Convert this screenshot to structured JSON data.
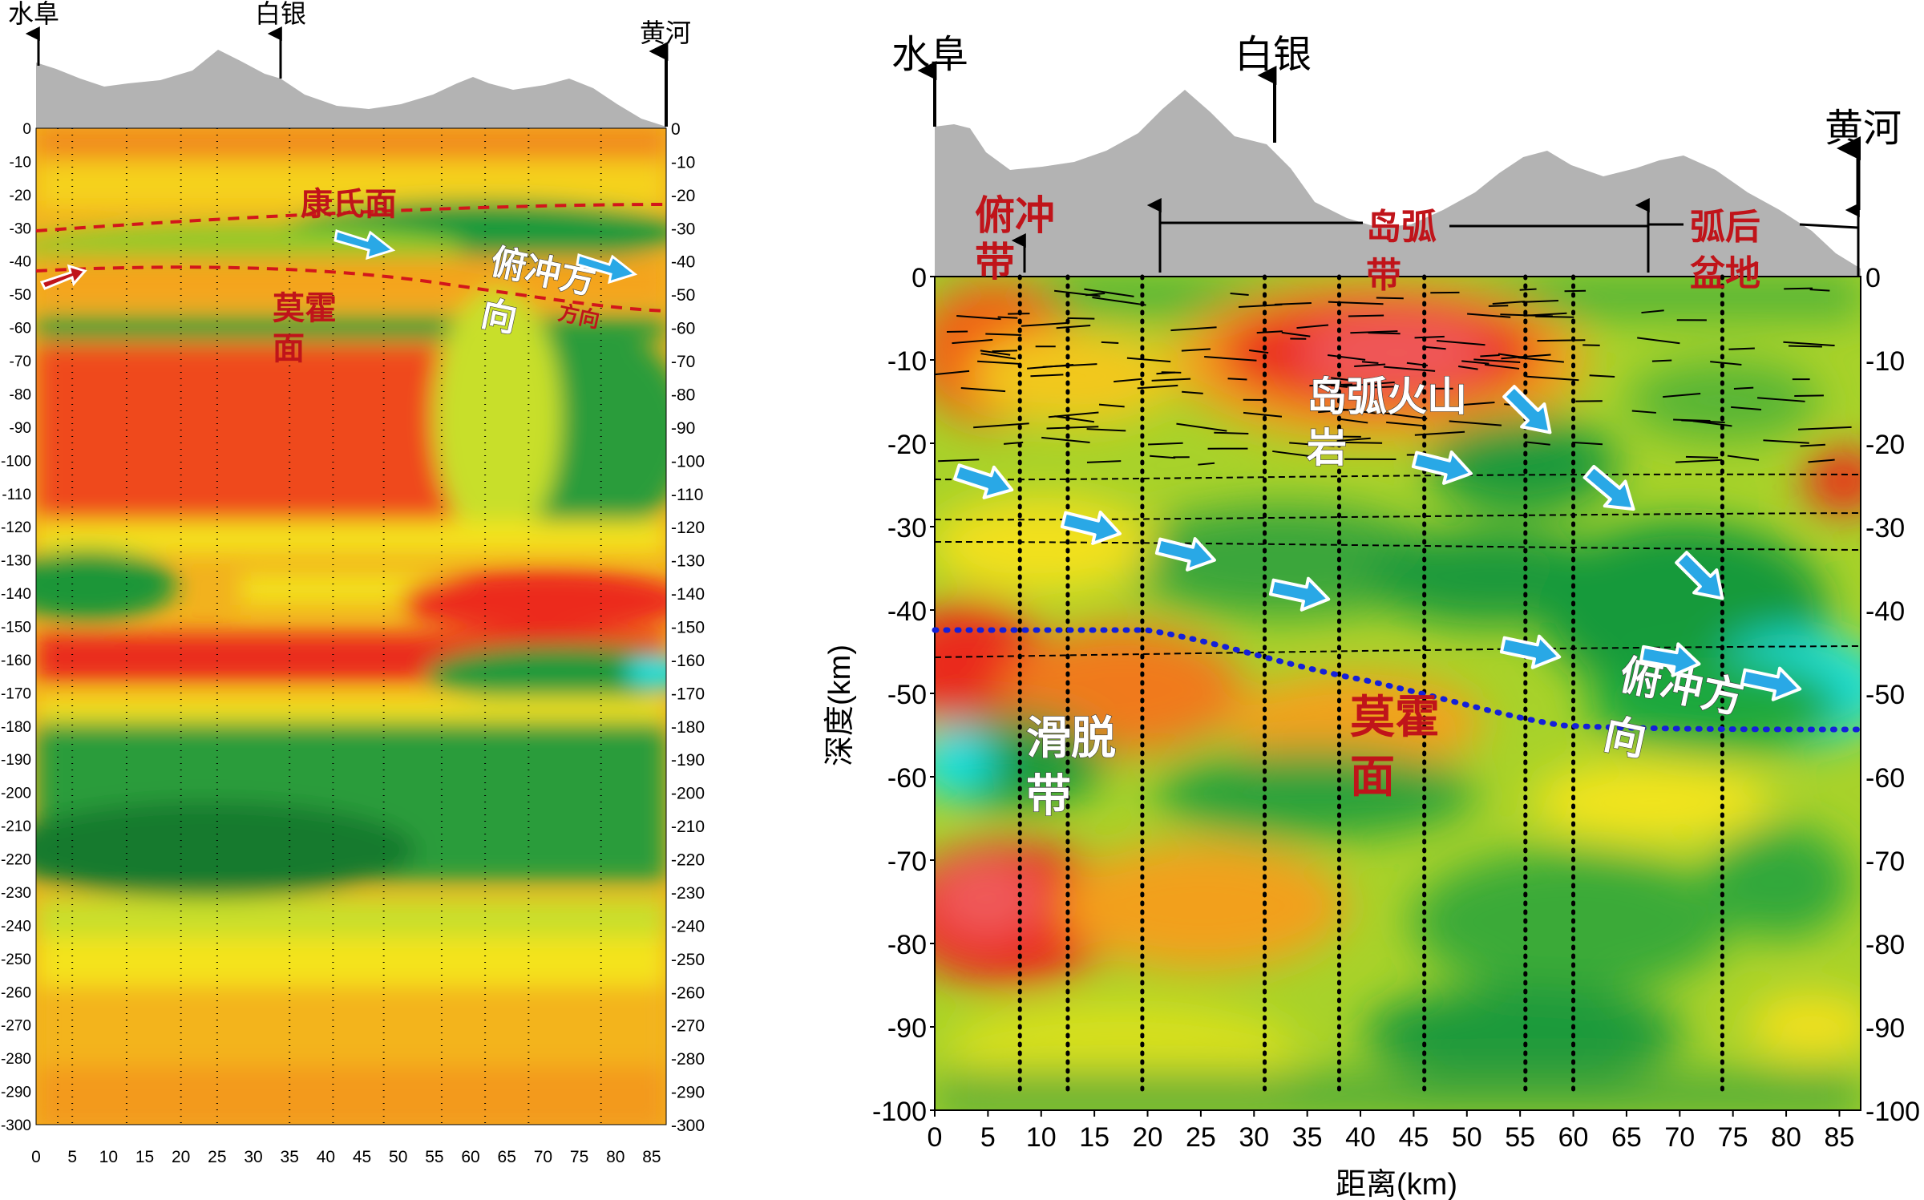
{
  "left_panel": {
    "places": {
      "west": "水阜",
      "mid": "白银",
      "east": "黄河"
    },
    "labels": {
      "kang": "康氏面",
      "moho_1": "莫霍",
      "moho_2": "面",
      "thrust_1": "俯冲方",
      "thrust_2": "向",
      "thrust_ghost": "方向"
    },
    "y_ticks": [
      "0",
      "-10",
      "-20",
      "-30",
      "-40",
      "-50",
      "-60",
      "-70",
      "-80",
      "-90",
      "-100",
      "-110",
      "-120",
      "-130",
      "-140",
      "-150",
      "-160",
      "-170",
      "-180",
      "-190",
      "-200",
      "-210",
      "-220",
      "-230",
      "-240",
      "-250",
      "-260",
      "-270",
      "-280",
      "-290",
      "-300"
    ],
    "x_ticks": [
      "0",
      "5",
      "10",
      "15",
      "20",
      "25",
      "30",
      "35",
      "40",
      "45",
      "50",
      "55",
      "60",
      "65",
      "70",
      "75",
      "80",
      "85"
    ]
  },
  "right_panel": {
    "places": {
      "west": "水阜",
      "mid": "白银",
      "east": "黄河"
    },
    "labels": {
      "subduction_zone_1": "俯冲",
      "subduction_zone_2": "带",
      "island_arc_1": "岛弧",
      "island_arc_2": "带",
      "backarc_1": "弧后",
      "backarc_2": "盆地",
      "volcanic_1": "岛弧火山",
      "volcanic_2": "岩",
      "detach_1": "滑脱",
      "detach_2": "带",
      "moho_1": "莫霍",
      "moho_2": "面",
      "thrust_1": "俯冲方",
      "thrust_2": "向"
    },
    "y_ticks": [
      "0",
      "-10",
      "-20",
      "-30",
      "-40",
      "-50",
      "-60",
      "-70",
      "-80",
      "-90",
      "-100"
    ],
    "y_ticks_right": [
      "0",
      "-10",
      "-20",
      "-30",
      "-40",
      "-50",
      "-60",
      "-70",
      "-80",
      "-90",
      "-100"
    ],
    "x_ticks": [
      "0",
      "5",
      "10",
      "15",
      "20",
      "25",
      "30",
      "35",
      "40",
      "45",
      "50",
      "55",
      "60",
      "65",
      "70",
      "75",
      "80",
      "85"
    ],
    "ylabel": "深度(km)",
    "xlabel": "距离(km)"
  },
  "colors": {
    "red": "#e8201c",
    "orange": "#f59a1a",
    "yellow": "#f4ef1a",
    "green": "#1ea23c",
    "cyan": "#18e8e6",
    "topo": "#b3b3b3",
    "arrow_blue": "#29a8e6",
    "moho_blue": "#1420d8",
    "boundary_red": "#d2161b"
  }
}
